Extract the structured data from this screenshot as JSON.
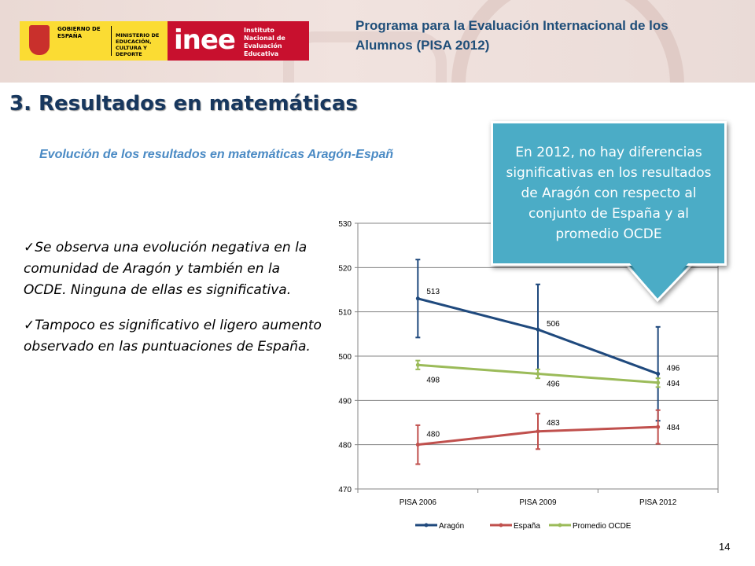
{
  "header": {
    "gov_logo_text": "GOBIERNO DE ESPAÑA",
    "ministry_text": "MINISTERIO DE EDUCACIÓN, CULTURA Y DEPORTE",
    "inee_logo_word": "inee",
    "inee_logo_text": "Instituto Nacional de Evaluación Educativa",
    "program_title": "Programa para la Evaluación Internacional de los Alumnos (PISA 2012)"
  },
  "section_title": "3. Resultados en matemáticas",
  "subtitle": "Evolución de los resultados en matemáticas Aragón-Españ",
  "bullets": [
    "Se observa una evolución negativa en la comunidad de Aragón y también en la OCDE. Ninguna de ellas es significativa.",
    "Tampoco es significativo el ligero aumento observado en las puntuaciones de España."
  ],
  "callout": "En 2012, no hay diferencias significativas en los resultados de Aragón con respecto al conjunto de España y al promedio OCDE",
  "page_number": "14",
  "colors": {
    "aragon": "#1f497d",
    "espana": "#c0504d",
    "ocde": "#9bbb59",
    "callout": "#4bacc6",
    "title": "#17375e"
  },
  "chart_data": {
    "type": "line",
    "categories": [
      "PISA 2006",
      "PISA 2009",
      "PISA 2012"
    ],
    "ylim": [
      470,
      530
    ],
    "yticks": [
      470,
      480,
      490,
      500,
      510,
      520,
      530
    ],
    "grid": true,
    "legend": "bottom",
    "series": [
      {
        "name": "Aragón",
        "values": [
          513,
          506,
          496
        ],
        "labels": [
          "513",
          "506",
          "496"
        ],
        "err_low": [
          504.2,
          496,
          485.4
        ],
        "err_high": [
          521.8,
          516.2,
          506.6
        ]
      },
      {
        "name": "España",
        "values": [
          480,
          483,
          484
        ],
        "labels": [
          "480",
          "483",
          "484"
        ],
        "err_low": [
          475.6,
          479,
          480.2
        ],
        "err_high": [
          484.4,
          487,
          487.8
        ]
      },
      {
        "name": "Promedio OCDE",
        "values": [
          498,
          496,
          494
        ],
        "labels": [
          "498",
          "496",
          "494"
        ],
        "err_low": [
          497,
          495,
          493
        ],
        "err_high": [
          499,
          497,
          495
        ]
      }
    ]
  }
}
